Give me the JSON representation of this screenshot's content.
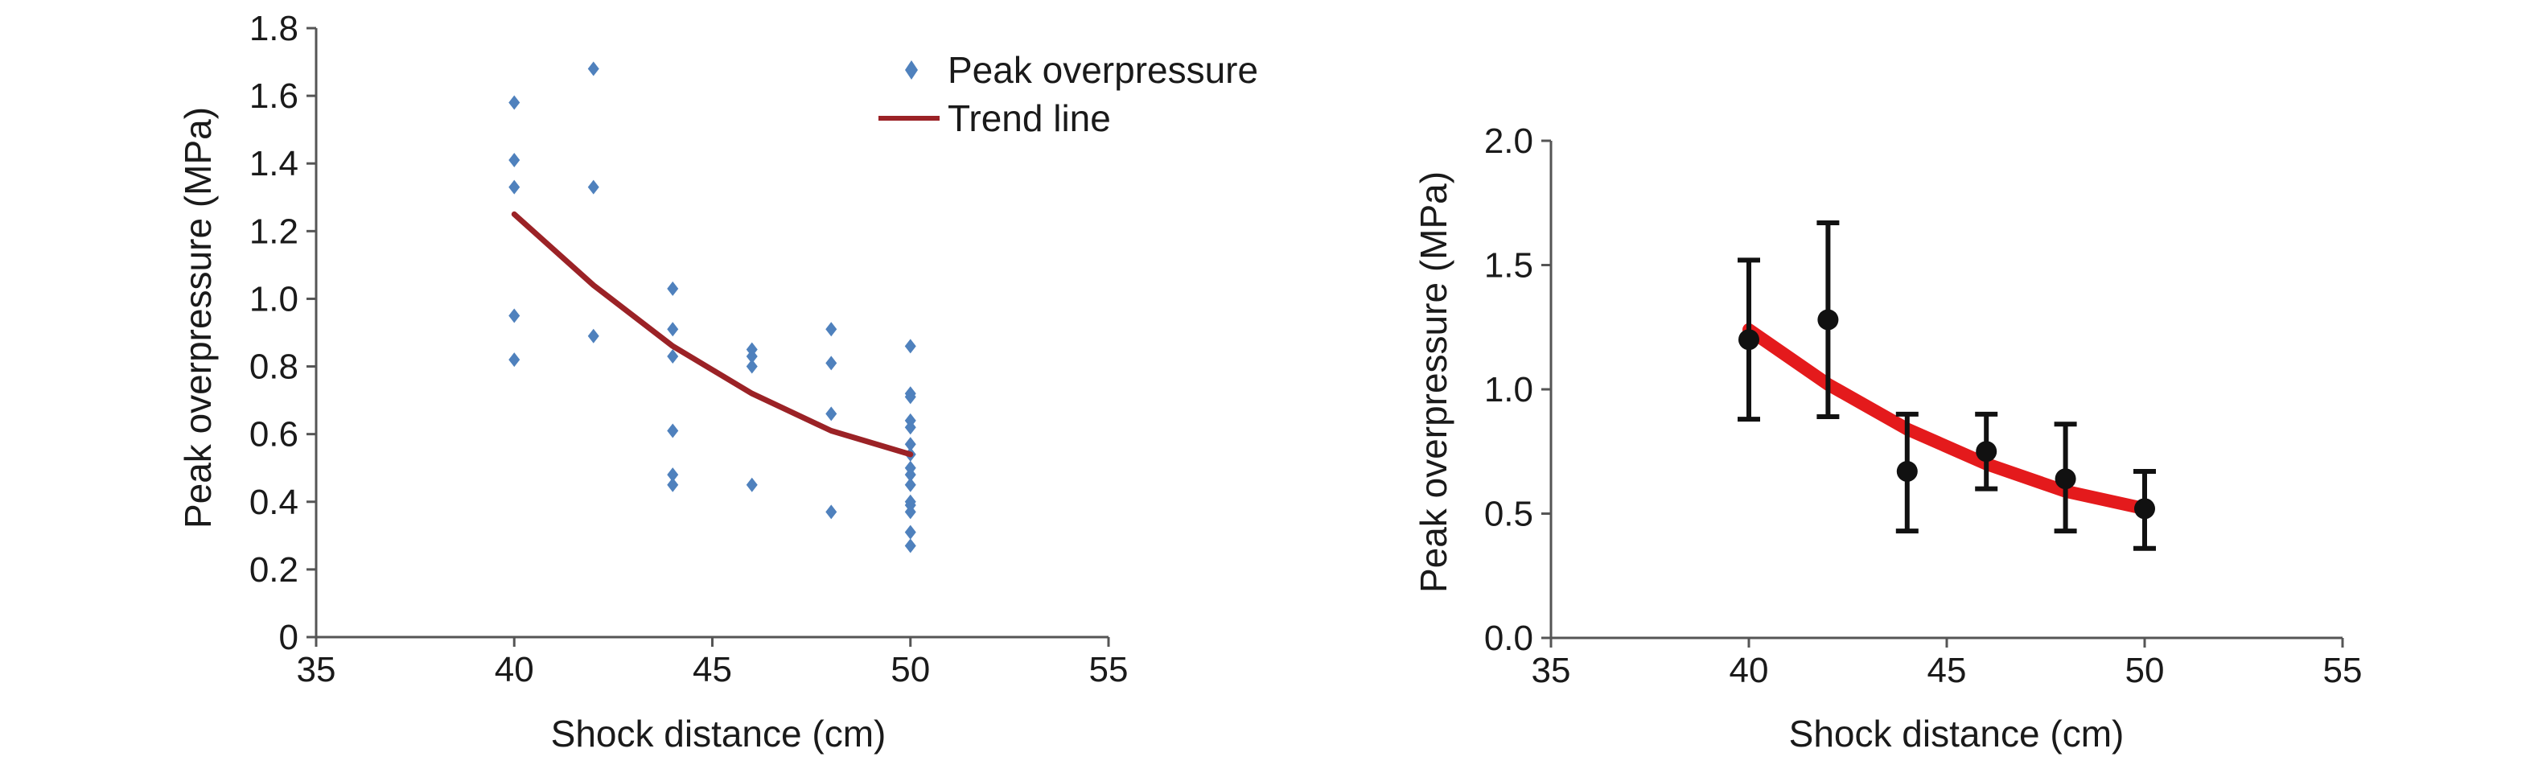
{
  "chart_data": [
    {
      "type": "scatter",
      "xlabel": "Shock distance (cm)",
      "ylabel": "Peak overpressure (MPa)",
      "xlim": [
        35,
        55
      ],
      "ylim": [
        0,
        1.8
      ],
      "xticks": [
        35,
        40,
        45,
        50,
        55
      ],
      "yticks": [
        0,
        0.2,
        0.4,
        0.6,
        0.8,
        1.0,
        1.2,
        1.4,
        1.6,
        1.8
      ],
      "ytick_labels": [
        "0",
        "0.2",
        "0.4",
        "0.6",
        "0.8",
        "1.0",
        "1.2",
        "1.4",
        "1.6",
        "1.8"
      ],
      "legend_position": "top-right",
      "grid": false,
      "series": [
        {
          "name": "Peak overpressure",
          "kind": "scatter",
          "color": "#4f81bd",
          "marker": "diamond",
          "points": [
            [
              40,
              1.58
            ],
            [
              40,
              1.41
            ],
            [
              40,
              1.33
            ],
            [
              40,
              0.95
            ],
            [
              40,
              0.82
            ],
            [
              42,
              1.68
            ],
            [
              42,
              1.33
            ],
            [
              42,
              0.89
            ],
            [
              44,
              1.03
            ],
            [
              44,
              0.91
            ],
            [
              44,
              0.83
            ],
            [
              44,
              0.61
            ],
            [
              44,
              0.48
            ],
            [
              44,
              0.45
            ],
            [
              46,
              0.85
            ],
            [
              46,
              0.83
            ],
            [
              46,
              0.8
            ],
            [
              46,
              0.45
            ],
            [
              48,
              0.91
            ],
            [
              48,
              0.81
            ],
            [
              48,
              0.66
            ],
            [
              48,
              0.37
            ],
            [
              50,
              0.86
            ],
            [
              50,
              0.72
            ],
            [
              50,
              0.71
            ],
            [
              50,
              0.64
            ],
            [
              50,
              0.62
            ],
            [
              50,
              0.57
            ],
            [
              50,
              0.54
            ],
            [
              50,
              0.5
            ],
            [
              50,
              0.48
            ],
            [
              50,
              0.45
            ],
            [
              50,
              0.4
            ],
            [
              50,
              0.39
            ],
            [
              50,
              0.37
            ],
            [
              50,
              0.31
            ],
            [
              50,
              0.27
            ]
          ]
        },
        {
          "name": "Trend line",
          "kind": "line",
          "color": "#9b2226",
          "points": [
            [
              40,
              1.25
            ],
            [
              42,
              1.04
            ],
            [
              44,
              0.86
            ],
            [
              46,
              0.72
            ],
            [
              48,
              0.61
            ],
            [
              50,
              0.54
            ]
          ]
        }
      ]
    },
    {
      "type": "scatter",
      "xlabel": "Shock distance (cm)",
      "ylabel": "Peak overpressure (MPa)",
      "xlim": [
        35,
        55
      ],
      "ylim": [
        0,
        2.0
      ],
      "xticks": [
        35,
        40,
        45,
        50,
        55
      ],
      "yticks": [
        0,
        0.5,
        1.0,
        1.5,
        2.0
      ],
      "ytick_labels": [
        "0.0",
        "0.5",
        "1.0",
        "1.5",
        "2.0"
      ],
      "grid": false,
      "series": [
        {
          "kind": "line",
          "color": "#e41a1c",
          "points": [
            [
              40,
              1.24
            ],
            [
              42,
              1.02
            ],
            [
              44,
              0.84
            ],
            [
              46,
              0.7
            ],
            [
              48,
              0.59
            ],
            [
              50,
              0.52
            ]
          ]
        },
        {
          "kind": "errorbar",
          "color": "#111111",
          "points": [
            {
              "x": 40,
              "y": 1.2,
              "lo": 0.88,
              "hi": 1.52
            },
            {
              "x": 42,
              "y": 1.28,
              "lo": 0.89,
              "hi": 1.67
            },
            {
              "x": 44,
              "y": 0.67,
              "lo": 0.43,
              "hi": 0.9
            },
            {
              "x": 46,
              "y": 0.75,
              "lo": 0.6,
              "hi": 0.9
            },
            {
              "x": 48,
              "y": 0.64,
              "lo": 0.43,
              "hi": 0.86
            },
            {
              "x": 50,
              "y": 0.52,
              "lo": 0.36,
              "hi": 0.67
            }
          ]
        }
      ]
    }
  ]
}
